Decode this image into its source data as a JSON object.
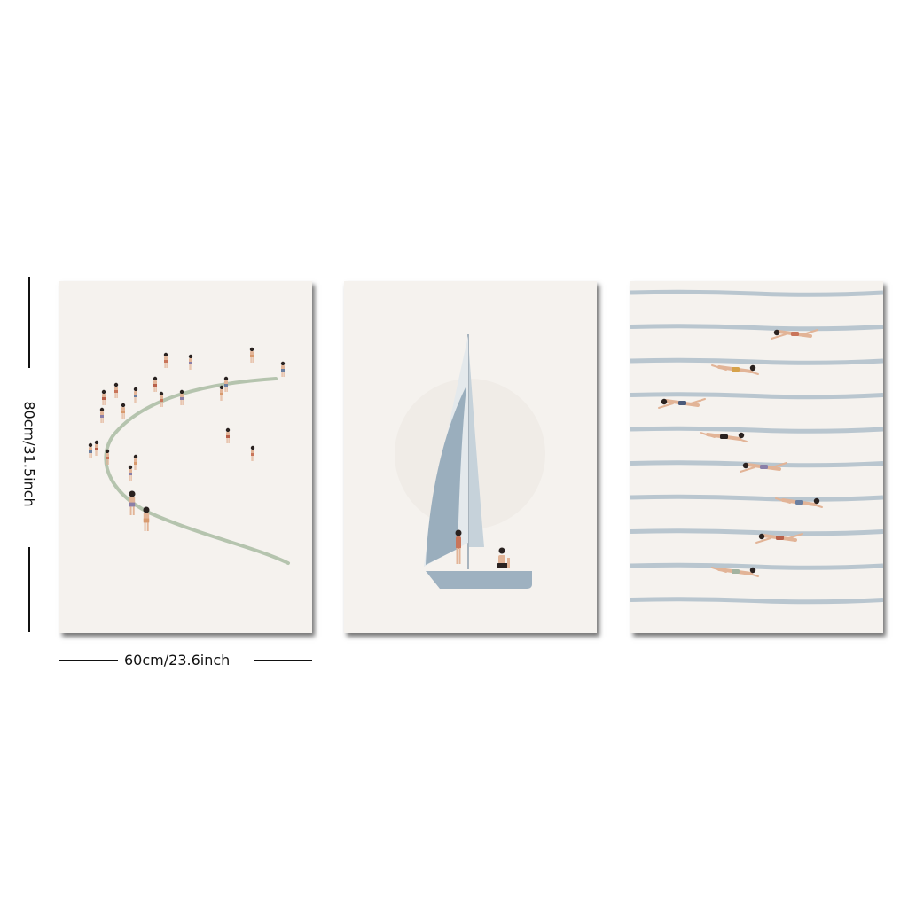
{
  "dimensions": {
    "width_label": "60cm/23.6inch",
    "height_label": "80cm/31.5inch"
  },
  "panels": [
    {
      "subject": "beach crowd with shoreline curve"
    },
    {
      "subject": "sailboat with two figures"
    },
    {
      "subject": "swimmers in striped water"
    }
  ],
  "colors": {
    "paper": "#f5f2ee",
    "shoreline": "#b5c4ae",
    "sail": "#9aaebd",
    "hull": "#9eb1c0",
    "stripe": "#b9c6cf",
    "skin": "#e2b497",
    "hair": "#2a2220"
  }
}
